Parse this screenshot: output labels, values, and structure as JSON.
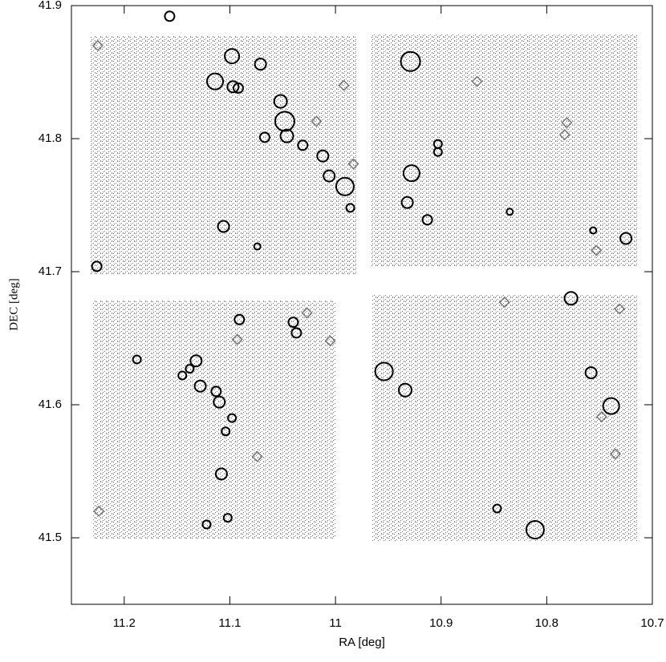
{
  "chart_data": {
    "type": "scatter",
    "xlabel": "RA [deg]",
    "ylabel": "DEC [deg]",
    "xlim": [
      11.25,
      10.7
    ],
    "xticks": [
      11.2,
      11.1,
      11,
      10.9,
      10.8,
      10.7
    ],
    "ylim": [
      41.45,
      41.9
    ],
    "yticks": [
      41.5,
      41.6,
      41.7,
      41.8,
      41.9
    ],
    "series": [
      {
        "marker": "circle",
        "color": "#000000",
        "x": [
          11.226,
          11.157,
          11.098,
          11.071,
          11.114,
          11.097,
          11.092,
          11.052,
          11.048,
          11.046,
          11.067,
          11.031,
          11.012,
          11.006,
          10.991,
          10.986,
          11.106,
          11.074,
          10.929,
          10.928,
          10.932,
          10.913,
          10.903,
          10.903,
          10.835,
          10.725,
          10.756,
          11.091,
          11.132,
          11.138,
          11.145,
          11.128,
          11.113,
          11.11,
          11.098,
          11.104,
          11.108,
          11.122,
          11.102,
          11.188,
          11.04,
          11.037,
          10.954,
          10.934,
          10.777,
          10.758,
          10.739,
          10.811,
          10.847
        ],
        "values": [
          41.704,
          41.892,
          41.862,
          41.856,
          41.843,
          41.839,
          41.838,
          41.828,
          41.813,
          41.802,
          41.801,
          41.795,
          41.787,
          41.772,
          41.764,
          41.748,
          41.734,
          41.719,
          41.858,
          41.774,
          41.752,
          41.739,
          41.79,
          41.796,
          41.745,
          41.725,
          41.731,
          41.664,
          41.633,
          41.627,
          41.622,
          41.614,
          41.61,
          41.602,
          41.59,
          41.58,
          41.548,
          41.51,
          41.515,
          41.634,
          41.662,
          41.654,
          41.625,
          41.611,
          41.68,
          41.624,
          41.599,
          41.506,
          41.522
        ],
        "sizes": [
          6,
          6,
          9,
          7,
          10,
          7,
          6,
          8,
          12,
          8,
          6,
          6,
          7,
          7,
          11,
          5,
          7,
          4,
          12,
          10,
          7,
          6,
          5,
          5,
          4,
          7,
          4,
          6,
          7,
          5,
          5,
          7,
          6,
          7,
          5,
          5,
          7,
          5,
          5,
          5,
          6,
          6,
          11,
          8,
          8,
          7,
          10,
          11,
          5
        ]
      },
      {
        "marker": "diamond",
        "color": "#777777",
        "x": [
          11.225,
          10.992,
          11.018,
          10.983,
          11.027,
          11.005,
          10.866,
          10.781,
          10.783,
          10.753,
          10.84,
          10.731,
          10.748,
          10.735,
          11.093,
          11.074,
          11.224
        ],
        "values": [
          41.87,
          41.84,
          41.813,
          41.781,
          41.669,
          41.648,
          41.843,
          41.812,
          41.803,
          41.716,
          41.677,
          41.672,
          41.591,
          41.563,
          41.649,
          41.561,
          41.52
        ]
      }
    ]
  }
}
